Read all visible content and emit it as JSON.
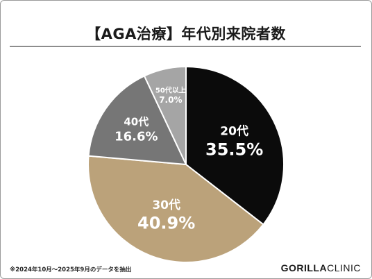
{
  "chart_data": {
    "type": "pie",
    "title": "【AGA治療】年代別来院者数",
    "categories": [
      "20代",
      "30代",
      "40代",
      "50代以上"
    ],
    "values": [
      35.5,
      40.9,
      16.6,
      7.0
    ],
    "value_labels": [
      "35.5%",
      "40.9%",
      "16.6%",
      "7.0%"
    ],
    "colors": [
      "#0b0b0b",
      "#bba27a",
      "#767676",
      "#a5a5a5"
    ],
    "label_colors": [
      "#ffffff",
      "#ffffff",
      "#ffffff",
      "#ffffff"
    ],
    "legend": "none"
  },
  "footnote": "※2024年10月～2025年9月のデータを抽出",
  "brand": {
    "part1": "GORILLA",
    "part2": "CLINIC"
  }
}
